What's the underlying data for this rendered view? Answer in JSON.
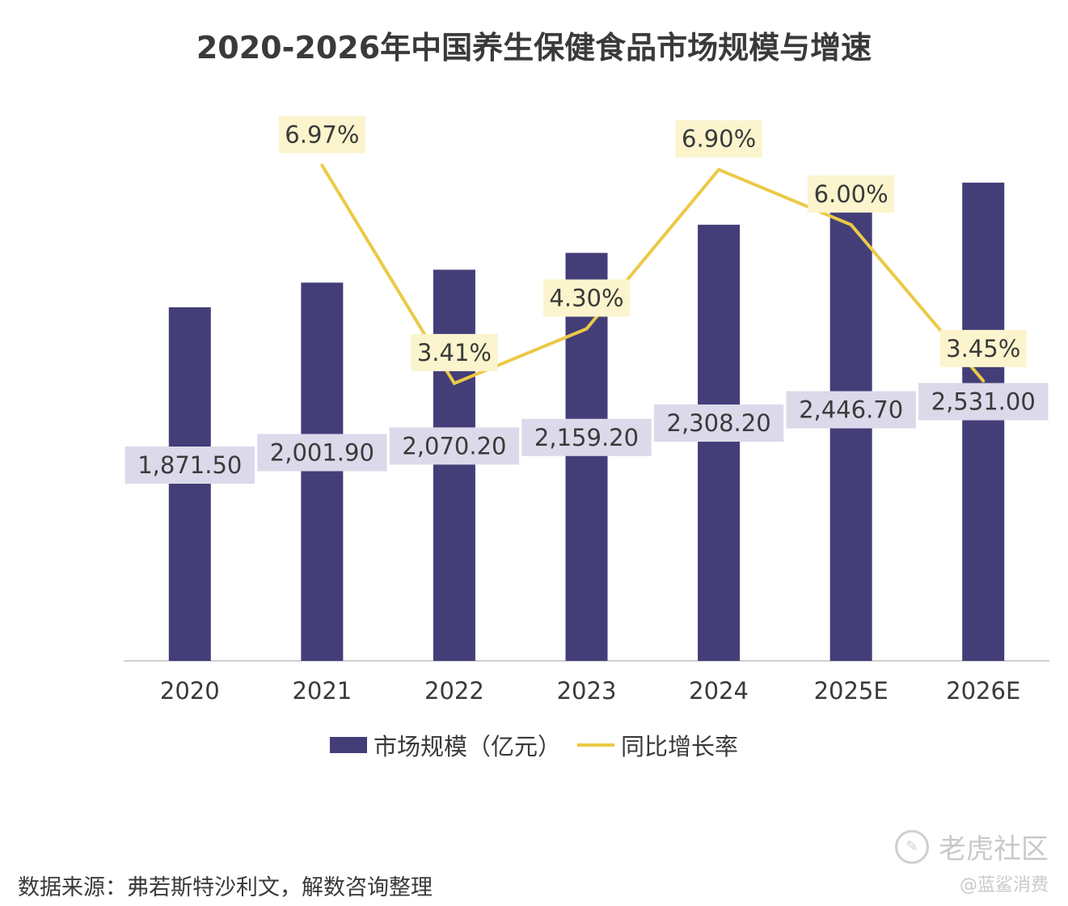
{
  "chart_data": {
    "type": "bar",
    "title": "2020-2026年中国养生保健食品市场规模与增速",
    "categories": [
      "2020",
      "2021",
      "2022",
      "2023",
      "2024",
      "2025E",
      "2026E"
    ],
    "series": [
      {
        "name": "市场规模（亿元）",
        "kind": "bar",
        "values": [
          1871.5,
          2001.9,
          2070.2,
          2159.2,
          2308.2,
          2446.7,
          2531.0
        ],
        "labels": [
          "1,871.50",
          "2,001.90",
          "2,070.20",
          "2,159.20",
          "2,308.20",
          "2,446.70",
          "2,531.00"
        ],
        "color": "#433e78",
        "label_bg": "#dcd9ea"
      },
      {
        "name": "同比增长率",
        "kind": "line",
        "values": [
          null,
          6.97,
          3.41,
          4.3,
          6.9,
          6.0,
          3.45
        ],
        "labels": [
          "",
          "6.97%",
          "3.41%",
          "4.30%",
          "6.90%",
          "6.00%",
          "3.45%"
        ],
        "color": "#ecc946",
        "label_bg": "#fbf4cd"
      }
    ],
    "legend_position": "bottom-center",
    "xlabel": "",
    "ylabel": "",
    "ylim": [
      0,
      2650
    ],
    "y2lim": [
      0,
      7.5
    ],
    "grid": false
  },
  "legend": {
    "bar_label": "市场规模（亿元）",
    "line_label": "同比增长率"
  },
  "source_note": "数据来源：弗若斯特沙利文，解数咨询整理",
  "watermark": {
    "name": "老虎社区",
    "handle": "@蓝鲨消费"
  }
}
